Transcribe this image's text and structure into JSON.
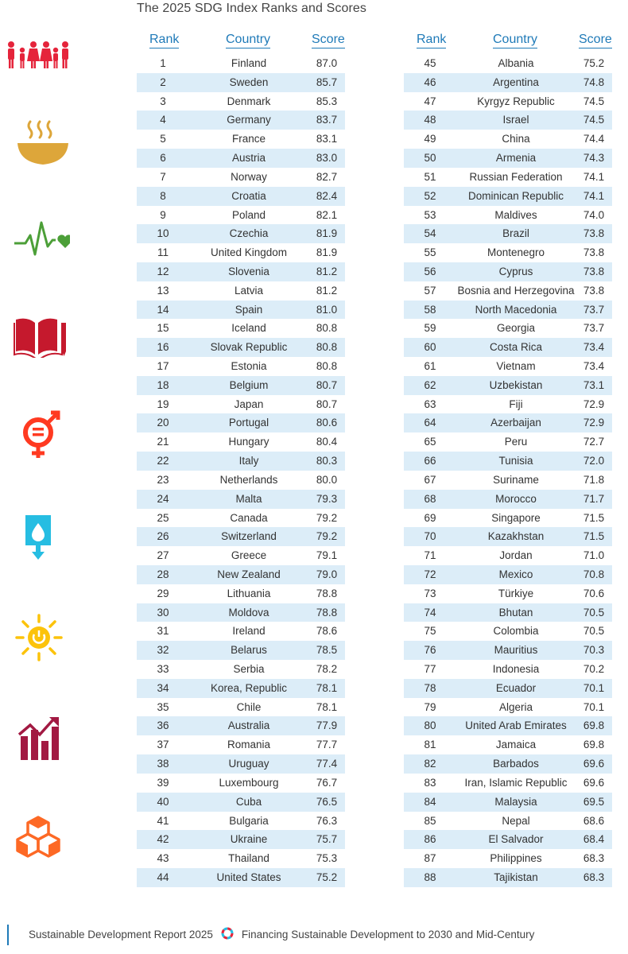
{
  "page": {
    "title": "The 2025 SDG Index Ranks and Scores"
  },
  "table_headers": {
    "rank": "Rank",
    "country": "Country",
    "score": "Score"
  },
  "left_rows": [
    {
      "rank": "1",
      "country": "Finland",
      "score": "87.0"
    },
    {
      "rank": "2",
      "country": "Sweden",
      "score": "85.7"
    },
    {
      "rank": "3",
      "country": "Denmark",
      "score": "85.3"
    },
    {
      "rank": "4",
      "country": "Germany",
      "score": "83.7"
    },
    {
      "rank": "5",
      "country": "France",
      "score": "83.1"
    },
    {
      "rank": "6",
      "country": "Austria",
      "score": "83.0"
    },
    {
      "rank": "7",
      "country": "Norway",
      "score": "82.7"
    },
    {
      "rank": "8",
      "country": "Croatia",
      "score": "82.4"
    },
    {
      "rank": "9",
      "country": "Poland",
      "score": "82.1"
    },
    {
      "rank": "10",
      "country": "Czechia",
      "score": "81.9"
    },
    {
      "rank": "11",
      "country": "United Kingdom",
      "score": "81.9"
    },
    {
      "rank": "12",
      "country": "Slovenia",
      "score": "81.2"
    },
    {
      "rank": "13",
      "country": "Latvia",
      "score": "81.2"
    },
    {
      "rank": "14",
      "country": "Spain",
      "score": "81.0"
    },
    {
      "rank": "15",
      "country": "Iceland",
      "score": "80.8"
    },
    {
      "rank": "16",
      "country": "Slovak Republic",
      "score": "80.8"
    },
    {
      "rank": "17",
      "country": "Estonia",
      "score": "80.8"
    },
    {
      "rank": "18",
      "country": "Belgium",
      "score": "80.7"
    },
    {
      "rank": "19",
      "country": "Japan",
      "score": "80.7"
    },
    {
      "rank": "20",
      "country": "Portugal",
      "score": "80.6"
    },
    {
      "rank": "21",
      "country": "Hungary",
      "score": "80.4"
    },
    {
      "rank": "22",
      "country": "Italy",
      "score": "80.3"
    },
    {
      "rank": "23",
      "country": "Netherlands",
      "score": "80.0"
    },
    {
      "rank": "24",
      "country": "Malta",
      "score": "79.3"
    },
    {
      "rank": "25",
      "country": "Canada",
      "score": "79.2"
    },
    {
      "rank": "26",
      "country": "Switzerland",
      "score": "79.2"
    },
    {
      "rank": "27",
      "country": "Greece",
      "score": "79.1"
    },
    {
      "rank": "28",
      "country": "New Zealand",
      "score": "79.0"
    },
    {
      "rank": "29",
      "country": "Lithuania",
      "score": "78.8"
    },
    {
      "rank": "30",
      "country": "Moldova",
      "score": "78.8"
    },
    {
      "rank": "31",
      "country": "Ireland",
      "score": "78.6"
    },
    {
      "rank": "32",
      "country": "Belarus",
      "score": "78.5"
    },
    {
      "rank": "33",
      "country": "Serbia",
      "score": "78.2"
    },
    {
      "rank": "34",
      "country": "Korea, Republic",
      "score": "78.1"
    },
    {
      "rank": "35",
      "country": "Chile",
      "score": "78.1"
    },
    {
      "rank": "36",
      "country": "Australia",
      "score": "77.9"
    },
    {
      "rank": "37",
      "country": "Romania",
      "score": "77.7"
    },
    {
      "rank": "38",
      "country": "Uruguay",
      "score": "77.4"
    },
    {
      "rank": "39",
      "country": "Luxembourg",
      "score": "76.7"
    },
    {
      "rank": "40",
      "country": "Cuba",
      "score": "76.5"
    },
    {
      "rank": "41",
      "country": "Bulgaria",
      "score": "76.3"
    },
    {
      "rank": "42",
      "country": "Ukraine",
      "score": "75.7"
    },
    {
      "rank": "43",
      "country": "Thailand",
      "score": "75.3"
    },
    {
      "rank": "44",
      "country": "United States",
      "score": "75.2"
    }
  ],
  "right_rows": [
    {
      "rank": "45",
      "country": "Albania",
      "score": "75.2"
    },
    {
      "rank": "46",
      "country": "Argentina",
      "score": "74.8"
    },
    {
      "rank": "47",
      "country": "Kyrgyz Republic",
      "score": "74.5"
    },
    {
      "rank": "48",
      "country": "Israel",
      "score": "74.5"
    },
    {
      "rank": "49",
      "country": "China",
      "score": "74.4"
    },
    {
      "rank": "50",
      "country": "Armenia",
      "score": "74.3"
    },
    {
      "rank": "51",
      "country": "Russian Federation",
      "score": "74.1"
    },
    {
      "rank": "52",
      "country": "Dominican Republic",
      "score": "74.1"
    },
    {
      "rank": "53",
      "country": "Maldives",
      "score": "74.0"
    },
    {
      "rank": "54",
      "country": "Brazil",
      "score": "73.8"
    },
    {
      "rank": "55",
      "country": "Montenegro",
      "score": "73.8"
    },
    {
      "rank": "56",
      "country": "Cyprus",
      "score": "73.8"
    },
    {
      "rank": "57",
      "country": "Bosnia and Herzegovina",
      "score": "73.8"
    },
    {
      "rank": "58",
      "country": "North Macedonia",
      "score": "73.7"
    },
    {
      "rank": "59",
      "country": "Georgia",
      "score": "73.7"
    },
    {
      "rank": "60",
      "country": "Costa Rica",
      "score": "73.4"
    },
    {
      "rank": "61",
      "country": "Vietnam",
      "score": "73.4"
    },
    {
      "rank": "62",
      "country": "Uzbekistan",
      "score": "73.1"
    },
    {
      "rank": "63",
      "country": "Fiji",
      "score": "72.9"
    },
    {
      "rank": "64",
      "country": "Azerbaijan",
      "score": "72.9"
    },
    {
      "rank": "65",
      "country": "Peru",
      "score": "72.7"
    },
    {
      "rank": "66",
      "country": "Tunisia",
      "score": "72.0"
    },
    {
      "rank": "67",
      "country": "Suriname",
      "score": "71.8"
    },
    {
      "rank": "68",
      "country": "Morocco",
      "score": "71.7"
    },
    {
      "rank": "69",
      "country": "Singapore",
      "score": "71.5"
    },
    {
      "rank": "70",
      "country": "Kazakhstan",
      "score": "71.5"
    },
    {
      "rank": "71",
      "country": "Jordan",
      "score": "71.0"
    },
    {
      "rank": "72",
      "country": "Mexico",
      "score": "70.8"
    },
    {
      "rank": "73",
      "country": "Türkiye",
      "score": "70.6"
    },
    {
      "rank": "74",
      "country": "Bhutan",
      "score": "70.5"
    },
    {
      "rank": "75",
      "country": "Colombia",
      "score": "70.5"
    },
    {
      "rank": "76",
      "country": "Mauritius",
      "score": "70.3"
    },
    {
      "rank": "77",
      "country": "Indonesia",
      "score": "70.2"
    },
    {
      "rank": "78",
      "country": "Ecuador",
      "score": "70.1"
    },
    {
      "rank": "79",
      "country": "Algeria",
      "score": "70.1"
    },
    {
      "rank": "80",
      "country": "United Arab Emirates",
      "score": "69.8"
    },
    {
      "rank": "81",
      "country": "Jamaica",
      "score": "69.8"
    },
    {
      "rank": "82",
      "country": "Barbados",
      "score": "69.6"
    },
    {
      "rank": "83",
      "country": "Iran, Islamic Republic",
      "score": "69.6"
    },
    {
      "rank": "84",
      "country": "Malaysia",
      "score": "69.5"
    },
    {
      "rank": "85",
      "country": "Nepal",
      "score": "68.6"
    },
    {
      "rank": "86",
      "country": "El Salvador",
      "score": "68.4"
    },
    {
      "rank": "87",
      "country": "Philippines",
      "score": "68.3"
    },
    {
      "rank": "88",
      "country": "Tajikistan",
      "score": "68.3"
    }
  ],
  "sdg_icons": [
    {
      "name": "sdg1-no-poverty-icon",
      "color": "#E5243B"
    },
    {
      "name": "sdg2-zero-hunger-icon",
      "color": "#DDA63A"
    },
    {
      "name": "sdg3-good-health-icon",
      "color": "#4C9F38"
    },
    {
      "name": "sdg4-quality-education-icon",
      "color": "#C5192D"
    },
    {
      "name": "sdg5-gender-equality-icon",
      "color": "#FF3A21"
    },
    {
      "name": "sdg6-clean-water-icon",
      "color": "#26BDE2"
    },
    {
      "name": "sdg7-clean-energy-icon",
      "color": "#FCC30B"
    },
    {
      "name": "sdg8-decent-work-icon",
      "color": "#A21942"
    },
    {
      "name": "sdg9-industry-innovation-icon",
      "color": "#FD6925"
    }
  ],
  "colors": {
    "header_blue": "#1f7ab8",
    "row_shade": "#dcedf8"
  },
  "footer": {
    "left_text": "Sustainable Development Report 2025",
    "right_text": "Financing Sustainable Development to 2030 and Mid-Century"
  }
}
